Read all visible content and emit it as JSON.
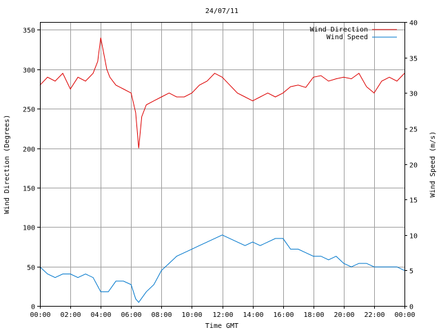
{
  "chart_data": {
    "type": "line",
    "title": "24/07/11",
    "xlabel": "Time GMT",
    "ylabel_left": "Wind Direction (Degrees)",
    "ylabel_right": "Wind Speed (m/s)",
    "x_ticks": [
      "00:00",
      "02:00",
      "04:00",
      "06:00",
      "08:00",
      "10:00",
      "12:00",
      "14:00",
      "16:00",
      "18:00",
      "20:00",
      "22:00",
      "00:00"
    ],
    "y_left_ticks": [
      0,
      50,
      100,
      150,
      200,
      250,
      300,
      350
    ],
    "y_right_ticks": [
      0,
      5,
      10,
      15,
      20,
      25,
      30,
      35,
      40
    ],
    "ylim_left": [
      0,
      360
    ],
    "ylim_right": [
      0,
      40
    ],
    "xlim_hours": [
      0,
      24
    ],
    "grid": true,
    "legend_position": "top-right",
    "series": [
      {
        "name": "Wind Direction",
        "axis": "left",
        "color": "#dd0000",
        "x": [
          0,
          0.5,
          1,
          1.5,
          2,
          2.5,
          3,
          3.5,
          3.8,
          4,
          4.2,
          4.4,
          4.6,
          5,
          5.5,
          6,
          6.3,
          6.5,
          6.7,
          7,
          7.5,
          8,
          8.5,
          9,
          9.5,
          10,
          10.5,
          11,
          11.5,
          12,
          12.5,
          13,
          13.5,
          14,
          14.5,
          15,
          15.5,
          16,
          16.5,
          17,
          17.5,
          18,
          18.5,
          19,
          19.5,
          20,
          20.5,
          21,
          21.5,
          22,
          22.5,
          23,
          23.5,
          24
        ],
        "values": [
          280,
          290,
          285,
          295,
          275,
          290,
          285,
          295,
          310,
          340,
          320,
          300,
          290,
          280,
          275,
          270,
          245,
          200,
          240,
          255,
          260,
          265,
          270,
          265,
          265,
          270,
          280,
          285,
          295,
          290,
          280,
          270,
          265,
          260,
          265,
          270,
          265,
          270,
          278,
          280,
          277,
          290,
          292,
          285,
          288,
          290,
          288,
          295,
          278,
          270,
          285,
          290,
          285,
          295
        ]
      },
      {
        "name": "Wind Speed",
        "axis": "right",
        "color": "#0077cc",
        "x": [
          0,
          0.5,
          1,
          1.5,
          2,
          2.5,
          3,
          3.5,
          4,
          4.5,
          5,
          5.5,
          6,
          6.3,
          6.5,
          7,
          7.5,
          8,
          8.5,
          9,
          9.5,
          10,
          10.5,
          11,
          11.5,
          12,
          12.5,
          13,
          13.5,
          14,
          14.5,
          15,
          15.5,
          16,
          16.5,
          17,
          17.5,
          18,
          18.5,
          19,
          19.5,
          20,
          20.5,
          21,
          21.5,
          22,
          22.5,
          23,
          23.5,
          24
        ],
        "values": [
          5.5,
          4.5,
          4,
          4.5,
          4.5,
          4,
          4.5,
          4,
          2,
          2,
          3.5,
          3.5,
          3,
          1,
          0.5,
          2,
          3,
          5,
          6,
          7,
          7.5,
          8,
          8.5,
          9,
          9.5,
          10,
          9.5,
          9,
          8.5,
          9,
          8.5,
          9,
          9.5,
          9.5,
          8,
          8,
          7.5,
          7,
          7,
          6.5,
          7,
          6,
          5.5,
          6,
          6,
          5.5,
          5.5,
          5.5,
          5.5,
          5
        ]
      }
    ]
  }
}
